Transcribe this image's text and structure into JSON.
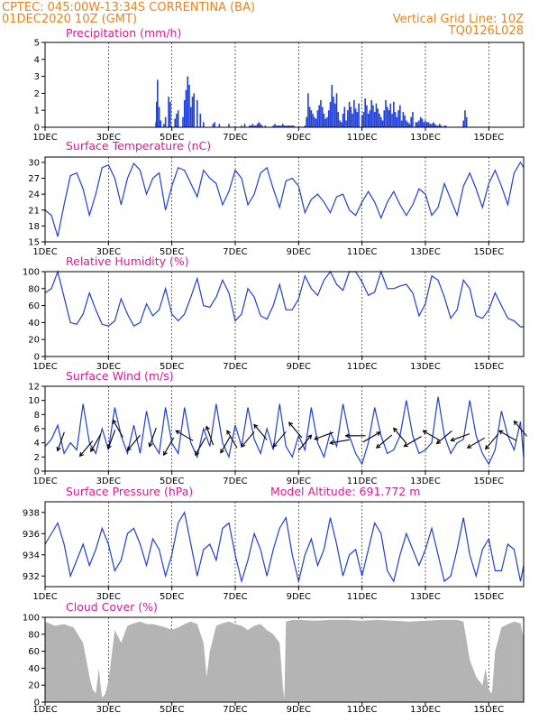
{
  "header": {
    "line1": "CPTEC:   045:00W-13:34S   CORRENTINA (BA)",
    "line2": "01DEC2020 10Z (GMT)",
    "grid_note": "Vertical Grid Line: 10Z",
    "code": "TQ0126L028"
  },
  "colors": {
    "header": "#e8821e",
    "title": "#e0198c",
    "line": "#1f3fd6",
    "bars": "#1f3fd6",
    "cloud": "#b4b4b4",
    "wind": "#000000"
  },
  "axis": {
    "x_labels": [
      "1DEC",
      "3DEC",
      "5DEC",
      "7DEC",
      "9DEC",
      "11DEC",
      "13DEC",
      "15DEC"
    ],
    "x_days": [
      1,
      3,
      5,
      7,
      9,
      11,
      13,
      15
    ],
    "x_range_days": [
      1,
      16.1
    ]
  },
  "chart_data": [
    {
      "id": "precip",
      "type": "bar",
      "title": "Precipitation (mm/h)",
      "ylim": [
        0,
        5
      ],
      "yticks": [
        0,
        1,
        2,
        3,
        4,
        5
      ],
      "x_days": [
        4.5,
        4.52,
        4.55,
        4.6,
        4.65,
        4.75,
        4.8,
        4.9,
        4.95,
        5.1,
        5.15,
        5.2,
        5.35,
        5.4,
        5.45,
        5.5,
        5.55,
        5.6,
        5.65,
        5.7,
        5.8,
        5.9,
        6.0,
        6.3,
        6.35,
        6.5,
        6.8,
        7.2,
        7.3,
        7.45,
        7.5,
        7.55,
        7.6,
        7.65,
        7.7,
        7.75,
        7.8,
        7.85,
        7.95,
        8.2,
        8.25,
        8.3,
        8.35,
        8.4,
        8.45,
        8.5,
        8.55,
        8.6,
        8.65,
        8.7,
        8.75,
        8.8,
        8.85,
        9.2,
        9.25,
        9.3,
        9.35,
        9.4,
        9.45,
        9.5,
        9.55,
        9.6,
        9.65,
        9.7,
        9.75,
        9.8,
        9.85,
        9.9,
        9.95,
        10.0,
        10.05,
        10.1,
        10.15,
        10.2,
        10.25,
        10.3,
        10.35,
        10.4,
        10.45,
        10.5,
        10.55,
        10.6,
        10.65,
        10.7,
        10.75,
        10.8,
        10.85,
        10.9,
        11.0,
        11.05,
        11.1,
        11.15,
        11.2,
        11.25,
        11.3,
        11.35,
        11.4,
        11.45,
        11.5,
        11.55,
        11.6,
        11.65,
        11.7,
        11.75,
        11.8,
        11.85,
        11.9,
        11.95,
        12.0,
        12.05,
        12.1,
        12.15,
        12.2,
        12.25,
        12.3,
        12.35,
        12.4,
        12.45,
        12.5,
        12.55,
        12.6,
        12.7,
        12.75,
        12.8,
        12.85,
        12.9,
        12.95,
        13.0,
        13.05,
        13.1,
        13.15,
        13.2,
        13.25,
        13.3,
        13.35,
        13.4,
        13.45,
        13.5,
        13.6,
        13.65,
        14.2,
        14.25,
        14.3
      ],
      "values": [
        0.3,
        1.5,
        2.8,
        1.2,
        0.4,
        0.2,
        0.6,
        1.8,
        1.5,
        0.5,
        0.8,
        1.0,
        0.6,
        1.6,
        2.2,
        3.0,
        2.5,
        1.2,
        1.8,
        2.0,
        1.6,
        0.8,
        0.3,
        0.2,
        0.3,
        0.2,
        0.2,
        0.1,
        0.2,
        0.1,
        0.1,
        0.2,
        0.1,
        0.1,
        0.2,
        0.3,
        0.2,
        0.1,
        0.1,
        0.1,
        0.2,
        0.1,
        0.1,
        0.1,
        0.1,
        0.2,
        0.1,
        0.1,
        0.1,
        0.1,
        0.1,
        0.1,
        0.1,
        0.1,
        0.6,
        2.0,
        1.2,
        1.0,
        0.8,
        0.6,
        0.5,
        1.0,
        1.3,
        1.6,
        1.2,
        0.8,
        0.5,
        0.6,
        1.0,
        1.5,
        2.5,
        1.8,
        1.4,
        2.0,
        0.9,
        0.4,
        0.3,
        0.8,
        1.2,
        0.4,
        1.0,
        1.5,
        1.2,
        0.8,
        1.6,
        1.1,
        0.9,
        1.4,
        0.7,
        0.9,
        1.7,
        1.3,
        0.8,
        1.0,
        1.6,
        1.3,
        0.9,
        1.4,
        1.1,
        0.8,
        0.6,
        0.4,
        1.0,
        1.6,
        1.2,
        1.0,
        1.4,
        0.8,
        1.5,
        0.9,
        0.6,
        1.0,
        1.3,
        0.4,
        0.9,
        0.7,
        0.4,
        0.3,
        0.2,
        0.6,
        0.9,
        0.3,
        0.3,
        0.4,
        0.6,
        0.5,
        0.3,
        0.4,
        0.3,
        0.3,
        0.2,
        0.2,
        0.3,
        0.2,
        0.1,
        0.1,
        0.2,
        0.1,
        0.1,
        0.1,
        0.4,
        1.0,
        0.6
      ]
    },
    {
      "id": "temp",
      "type": "line",
      "title": "Surface Temperature (nC)",
      "ylim": [
        15,
        31
      ],
      "yticks": [
        15,
        18,
        21,
        24,
        27,
        30
      ],
      "x_days": [
        1.0,
        1.2,
        1.4,
        1.6,
        1.8,
        2.0,
        2.2,
        2.4,
        2.6,
        2.8,
        3.0,
        3.2,
        3.4,
        3.6,
        3.8,
        4.0,
        4.2,
        4.4,
        4.6,
        4.8,
        5.0,
        5.2,
        5.4,
        5.6,
        5.8,
        6.0,
        6.2,
        6.4,
        6.6,
        6.8,
        7.0,
        7.2,
        7.4,
        7.6,
        7.8,
        8.0,
        8.2,
        8.4,
        8.6,
        8.8,
        9.0,
        9.2,
        9.4,
        9.6,
        9.8,
        10.0,
        10.2,
        10.4,
        10.6,
        10.8,
        11.0,
        11.2,
        11.4,
        11.6,
        11.8,
        12.0,
        12.2,
        12.4,
        12.6,
        12.8,
        13.0,
        13.2,
        13.4,
        13.6,
        13.8,
        14.0,
        14.2,
        14.4,
        14.6,
        14.8,
        15.0,
        15.2,
        15.4,
        15.6,
        15.8,
        16.0,
        16.1
      ],
      "values": [
        21,
        20,
        16,
        22,
        27.5,
        28,
        25,
        20,
        24,
        29,
        29.5,
        27,
        22,
        27,
        29.8,
        28.5,
        24,
        27,
        28,
        21,
        25.5,
        29,
        28.5,
        26,
        23.5,
        28.5,
        27,
        26,
        22,
        24.5,
        28.5,
        27,
        22,
        24,
        28,
        29,
        25,
        21.5,
        26.5,
        27,
        25.5,
        20.5,
        23,
        24,
        22.5,
        20.5,
        23.5,
        24,
        21,
        20,
        22.5,
        24.5,
        22.5,
        19.5,
        22.5,
        24.5,
        22,
        20,
        22,
        25,
        24,
        20,
        21.5,
        26,
        23,
        20,
        25.5,
        28,
        25,
        21.5,
        26,
        28.5,
        25.5,
        22,
        28,
        30,
        29
      ]
    },
    {
      "id": "rh",
      "type": "line",
      "title": "Relative Humidity (%)",
      "ylim": [
        0,
        100
      ],
      "yticks": [
        0,
        20,
        40,
        60,
        80,
        100
      ],
      "x_days": [
        1.0,
        1.2,
        1.4,
        1.6,
        1.8,
        2.0,
        2.2,
        2.4,
        2.6,
        2.8,
        3.0,
        3.2,
        3.4,
        3.6,
        3.8,
        4.0,
        4.2,
        4.4,
        4.6,
        4.8,
        5.0,
        5.2,
        5.4,
        5.6,
        5.8,
        6.0,
        6.2,
        6.4,
        6.6,
        6.8,
        7.0,
        7.2,
        7.4,
        7.6,
        7.8,
        8.0,
        8.2,
        8.4,
        8.6,
        8.8,
        9.0,
        9.2,
        9.4,
        9.6,
        9.8,
        10.0,
        10.2,
        10.4,
        10.6,
        10.8,
        11.0,
        11.2,
        11.4,
        11.6,
        11.8,
        12.0,
        12.2,
        12.4,
        12.6,
        12.8,
        13.0,
        13.2,
        13.4,
        13.6,
        13.8,
        14.0,
        14.2,
        14.4,
        14.6,
        14.8,
        15.0,
        15.2,
        15.4,
        15.6,
        15.8,
        16.0,
        16.1
      ],
      "values": [
        75,
        80,
        100,
        70,
        40,
        38,
        50,
        75,
        55,
        38,
        36,
        42,
        68,
        50,
        36,
        40,
        62,
        48,
        55,
        80,
        50,
        42,
        50,
        70,
        92,
        60,
        58,
        70,
        90,
        75,
        42,
        50,
        80,
        70,
        48,
        44,
        60,
        85,
        55,
        55,
        68,
        95,
        80,
        72,
        90,
        100,
        85,
        78,
        100,
        100,
        88,
        72,
        76,
        100,
        80,
        80,
        83,
        85,
        75,
        48,
        62,
        95,
        90,
        70,
        45,
        55,
        90,
        80,
        48,
        45,
        55,
        75,
        60,
        45,
        42,
        35,
        35
      ]
    },
    {
      "id": "wind",
      "type": "line",
      "title": "Surface Wind (m/s)",
      "ylim": [
        0,
        12
      ],
      "yticks": [
        0,
        2,
        4,
        6,
        8,
        10,
        12
      ],
      "x_days": [
        1.0,
        1.2,
        1.4,
        1.6,
        1.8,
        2.0,
        2.2,
        2.4,
        2.6,
        2.8,
        3.0,
        3.2,
        3.4,
        3.6,
        3.8,
        4.0,
        4.2,
        4.4,
        4.6,
        4.8,
        5.0,
        5.2,
        5.4,
        5.6,
        5.8,
        6.0,
        6.2,
        6.4,
        6.6,
        6.8,
        7.0,
        7.2,
        7.4,
        7.6,
        7.8,
        8.0,
        8.2,
        8.4,
        8.6,
        8.8,
        9.0,
        9.2,
        9.4,
        9.6,
        9.8,
        10.0,
        10.2,
        10.4,
        10.6,
        10.8,
        11.0,
        11.2,
        11.4,
        11.6,
        11.8,
        12.0,
        12.2,
        12.4,
        12.6,
        12.8,
        13.0,
        13.2,
        13.4,
        13.6,
        13.8,
        14.0,
        14.2,
        14.4,
        14.6,
        14.8,
        15.0,
        15.2,
        15.4,
        15.6,
        15.8,
        16.0,
        16.1
      ],
      "values": [
        3.5,
        4.5,
        6.5,
        2.5,
        4.0,
        3.0,
        9.5,
        4.0,
        2.5,
        6.0,
        3.0,
        9.0,
        5.0,
        2.5,
        6.5,
        2.5,
        8.5,
        4.0,
        2.5,
        9.0,
        4.0,
        2.5,
        9.0,
        4.0,
        2.0,
        6.0,
        3.5,
        9.5,
        4.0,
        2.0,
        6.5,
        3.5,
        9.0,
        4.5,
        2.5,
        6.0,
        3.0,
        9.5,
        3.5,
        2.0,
        5.0,
        3.0,
        9.0,
        4.0,
        2.0,
        5.5,
        3.5,
        9.5,
        5.0,
        2.5,
        1.0,
        4.0,
        9.0,
        5.0,
        2.5,
        3.0,
        5.0,
        10.0,
        5.0,
        2.5,
        3.0,
        4.0,
        10.5,
        5.0,
        2.5,
        4.0,
        4.5,
        10.0,
        5.0,
        2.5,
        1.0,
        3.0,
        8.5,
        5.0,
        3.0,
        7.0,
        2.0
      ],
      "barbs": [
        {
          "x": 1.5,
          "y": 4.2,
          "dir": 200
        },
        {
          "x": 2.3,
          "y": 3.2,
          "dir": 220
        },
        {
          "x": 2.6,
          "y": 4.0,
          "dir": 210
        },
        {
          "x": 3.1,
          "y": 4.5,
          "dir": 200
        },
        {
          "x": 3.3,
          "y": 6.0,
          "dir": 330
        },
        {
          "x": 3.8,
          "y": 4.0,
          "dir": 220
        },
        {
          "x": 4.4,
          "y": 4.8,
          "dir": 200
        },
        {
          "x": 4.9,
          "y": 3.5,
          "dir": 210
        },
        {
          "x": 5.4,
          "y": 5.0,
          "dir": 300
        },
        {
          "x": 5.9,
          "y": 3.5,
          "dir": 210
        },
        {
          "x": 6.2,
          "y": 5.0,
          "dir": 340
        },
        {
          "x": 6.7,
          "y": 3.8,
          "dir": 210
        },
        {
          "x": 6.9,
          "y": 4.5,
          "dir": 330
        },
        {
          "x": 7.4,
          "y": 4.5,
          "dir": 220
        },
        {
          "x": 7.8,
          "y": 5.5,
          "dir": 320
        },
        {
          "x": 8.4,
          "y": 4.5,
          "dir": 220
        },
        {
          "x": 8.9,
          "y": 5.8,
          "dir": 320
        },
        {
          "x": 9.2,
          "y": 4.0,
          "dir": 40
        },
        {
          "x": 9.8,
          "y": 5.0,
          "dir": 250
        },
        {
          "x": 10.3,
          "y": 4.2,
          "dir": 260
        },
        {
          "x": 10.8,
          "y": 5.0,
          "dir": 270
        },
        {
          "x": 11.3,
          "y": 4.8,
          "dir": 60
        },
        {
          "x": 11.7,
          "y": 4.2,
          "dir": 230
        },
        {
          "x": 12.2,
          "y": 5.0,
          "dir": 320
        },
        {
          "x": 12.6,
          "y": 4.2,
          "dir": 240
        },
        {
          "x": 13.2,
          "y": 5.0,
          "dir": 300
        },
        {
          "x": 13.6,
          "y": 4.8,
          "dir": 230
        },
        {
          "x": 14.1,
          "y": 4.8,
          "dir": 250
        },
        {
          "x": 14.6,
          "y": 4.0,
          "dir": 240
        },
        {
          "x": 15.1,
          "y": 4.2,
          "dir": 220
        },
        {
          "x": 15.6,
          "y": 5.0,
          "dir": 300
        },
        {
          "x": 16.0,
          "y": 6.0,
          "dir": 320
        }
      ]
    },
    {
      "id": "pres",
      "type": "line",
      "title": "Surface Pressure (hPa)",
      "subtitle": "Model Altitude: 691.772  m",
      "ylim": [
        931,
        939
      ],
      "yticks": [
        932,
        934,
        936,
        938
      ],
      "x_days": [
        1.0,
        1.2,
        1.4,
        1.6,
        1.8,
        2.0,
        2.2,
        2.4,
        2.6,
        2.8,
        3.0,
        3.2,
        3.4,
        3.6,
        3.8,
        4.0,
        4.2,
        4.4,
        4.6,
        4.8,
        5.0,
        5.2,
        5.4,
        5.6,
        5.8,
        6.0,
        6.2,
        6.4,
        6.6,
        6.8,
        7.0,
        7.2,
        7.4,
        7.6,
        7.8,
        8.0,
        8.2,
        8.4,
        8.6,
        8.8,
        9.0,
        9.2,
        9.4,
        9.6,
        9.8,
        10.0,
        10.2,
        10.4,
        10.6,
        10.8,
        11.0,
        11.2,
        11.4,
        11.6,
        11.8,
        12.0,
        12.2,
        12.4,
        12.6,
        12.8,
        13.0,
        13.2,
        13.4,
        13.6,
        13.8,
        14.0,
        14.2,
        14.4,
        14.6,
        14.8,
        15.0,
        15.2,
        15.4,
        15.6,
        15.8,
        16.0,
        16.1
      ],
      "values": [
        935.0,
        936.0,
        937.0,
        935.0,
        932.0,
        933.5,
        935.0,
        933.0,
        934.5,
        936.5,
        935.0,
        932.5,
        933.5,
        936.0,
        936.5,
        935.0,
        933.0,
        935.5,
        934.5,
        932.0,
        934.0,
        937.0,
        938.0,
        935.0,
        932.0,
        934.5,
        935.0,
        933.5,
        936.5,
        937.0,
        934.0,
        931.5,
        933.5,
        936.0,
        934.5,
        932.0,
        934.5,
        936.5,
        937.5,
        934.0,
        931.5,
        934.0,
        935.5,
        933.0,
        934.5,
        937.5,
        935.0,
        932.0,
        934.0,
        934.5,
        932.0,
        934.5,
        937.0,
        936.0,
        932.5,
        931.5,
        934.0,
        936.0,
        934.5,
        933.0,
        934.5,
        936.5,
        934.0,
        931.5,
        932.0,
        934.5,
        937.5,
        934.0,
        932.0,
        934.5,
        935.5,
        932.5,
        932.5,
        935.0,
        934.5,
        931.5,
        933.0
      ]
    },
    {
      "id": "cloud",
      "type": "area",
      "title": "Cloud Cover (%)",
      "ylim": [
        0,
        100
      ],
      "yticks": [
        0,
        20,
        40,
        60,
        80,
        100
      ],
      "x_days": [
        1.0,
        1.3,
        1.6,
        1.9,
        2.2,
        2.4,
        2.5,
        2.6,
        2.7,
        2.75,
        2.8,
        2.9,
        3.0,
        3.2,
        3.4,
        3.6,
        3.8,
        4.0,
        4.2,
        4.4,
        4.6,
        4.8,
        5.0,
        5.2,
        5.4,
        5.6,
        5.8,
        6.0,
        6.1,
        6.2,
        6.4,
        6.6,
        6.8,
        7.0,
        7.2,
        7.4,
        7.6,
        7.8,
        8.0,
        8.2,
        8.4,
        8.5,
        8.55,
        8.6,
        8.8,
        9.0,
        9.5,
        10.0,
        10.5,
        11.0,
        11.5,
        12.0,
        12.5,
        13.0,
        13.5,
        14.0,
        14.2,
        14.4,
        14.6,
        14.8,
        14.9,
        15.0,
        15.1,
        15.2,
        15.4,
        15.6,
        15.8,
        16.0,
        16.1
      ],
      "values": [
        95,
        90,
        92,
        88,
        70,
        30,
        15,
        10,
        40,
        20,
        5,
        10,
        25,
        85,
        70,
        90,
        93,
        95,
        92,
        92,
        90,
        88,
        85,
        88,
        92,
        95,
        92,
        70,
        30,
        60,
        90,
        93,
        95,
        92,
        90,
        85,
        90,
        92,
        85,
        80,
        70,
        20,
        3,
        95,
        97,
        97,
        96,
        97,
        97,
        96,
        97,
        96,
        95,
        96,
        97,
        97,
        95,
        50,
        30,
        20,
        40,
        15,
        10,
        60,
        88,
        92,
        95,
        93,
        75
      ]
    }
  ]
}
